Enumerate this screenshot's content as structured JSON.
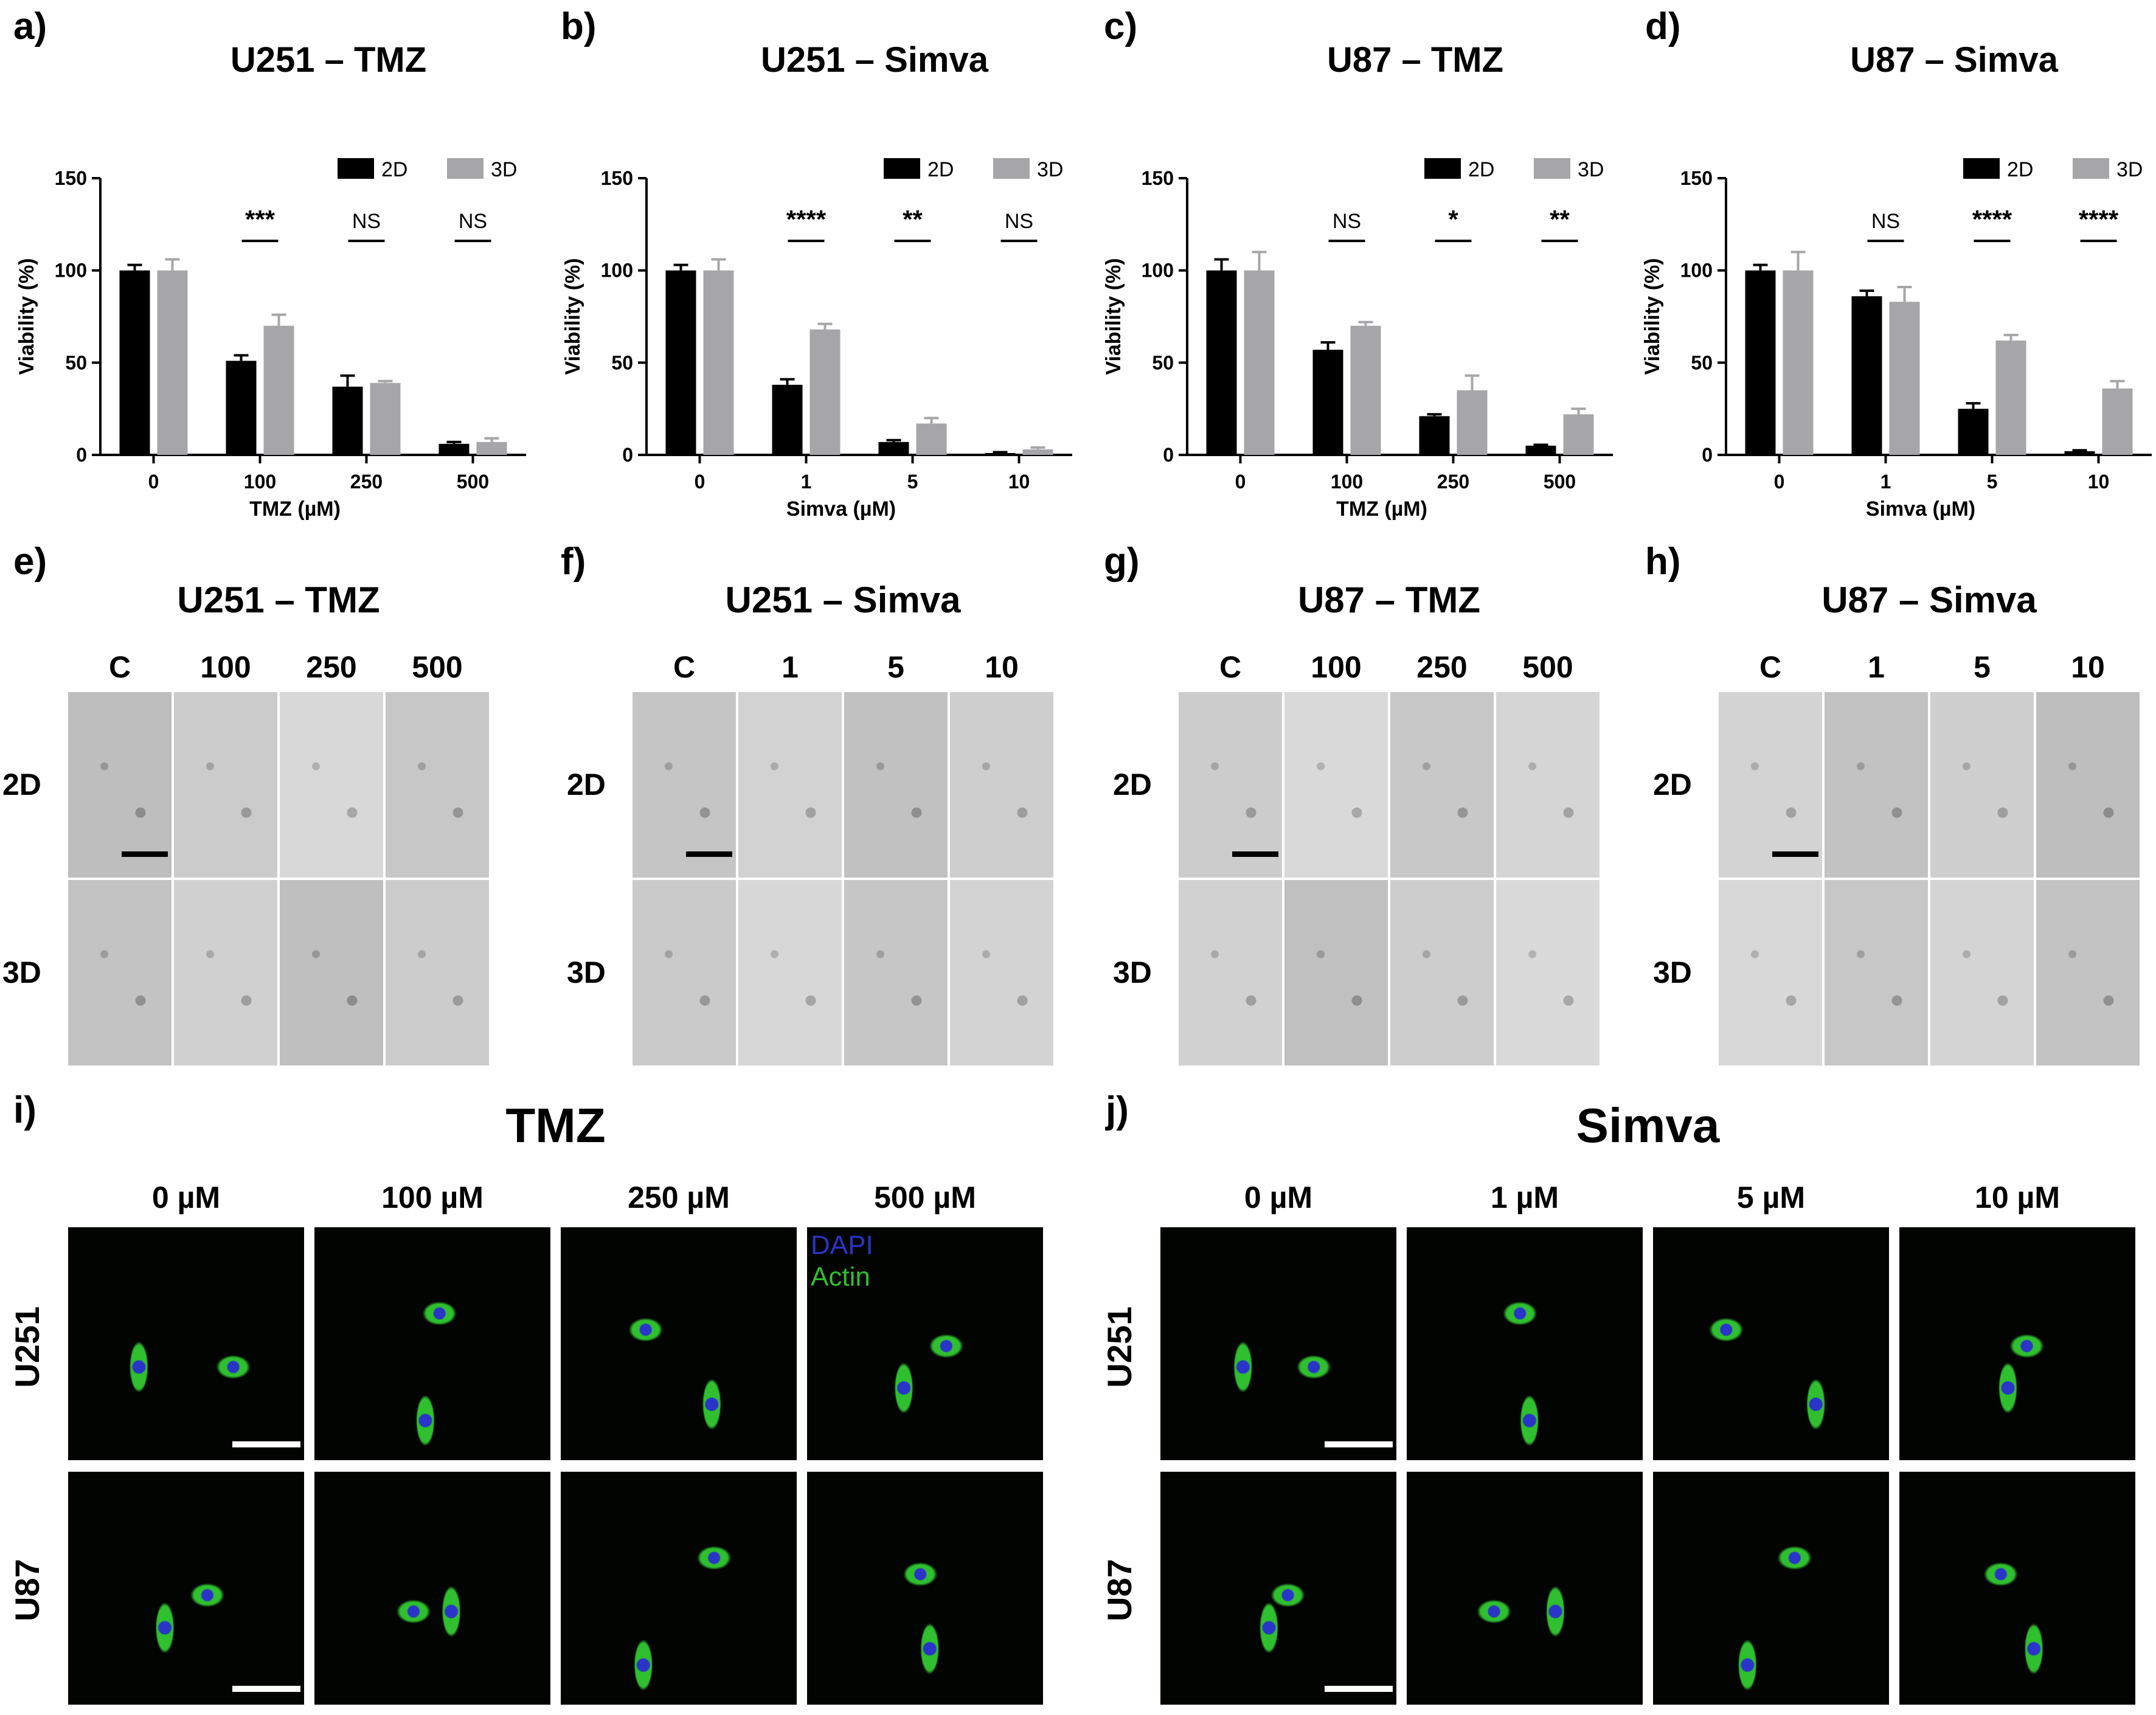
{
  "panel_labels": [
    "a)",
    "b)",
    "c)",
    "d)",
    "e)",
    "f)",
    "g)",
    "h)",
    "i)",
    "j)"
  ],
  "chart_data": [
    {
      "type": "bar",
      "title": "U251 – TMZ",
      "xlabel": "TMZ (µM)",
      "ylabel": "Viability (%)",
      "ylim": [
        0,
        150
      ],
      "yticks": [
        0,
        50,
        100,
        150
      ],
      "categories": [
        "0",
        "100",
        "250",
        "500"
      ],
      "legend_position": "top-right",
      "series": [
        {
          "name": "2D",
          "color": "#000000",
          "values": [
            100,
            51,
            37,
            6
          ],
          "errors": [
            3,
            3,
            6,
            1
          ]
        },
        {
          "name": "3D",
          "color": "#a6a6a8",
          "values": [
            100,
            70,
            39,
            7
          ],
          "errors": [
            6,
            6,
            1,
            2
          ]
        }
      ],
      "significance": [
        "",
        "***",
        "NS",
        "NS"
      ]
    },
    {
      "type": "bar",
      "title": "U251 –  Simva",
      "xlabel": "Simva (µM)",
      "ylabel": "Viability (%)",
      "ylim": [
        0,
        150
      ],
      "yticks": [
        0,
        50,
        100,
        150
      ],
      "categories": [
        "0",
        "1",
        "5",
        "10"
      ],
      "legend_position": "top-right",
      "series": [
        {
          "name": "2D",
          "color": "#000000",
          "values": [
            100,
            38,
            7,
            1
          ],
          "errors": [
            3,
            3,
            1,
            0.5
          ]
        },
        {
          "name": "3D",
          "color": "#a6a6a8",
          "values": [
            100,
            68,
            17,
            3
          ],
          "errors": [
            6,
            3,
            3,
            1
          ]
        }
      ],
      "significance": [
        "",
        "****",
        "**",
        "NS"
      ]
    },
    {
      "type": "bar",
      "title": "U87 – TMZ",
      "xlabel": "TMZ (µM)",
      "ylabel": "Viability (%)",
      "ylim": [
        0,
        150
      ],
      "yticks": [
        0,
        50,
        100,
        150
      ],
      "categories": [
        "0",
        "100",
        "250",
        "500"
      ],
      "legend_position": "top-right",
      "series": [
        {
          "name": "2D",
          "color": "#000000",
          "values": [
            100,
            57,
            21,
            5
          ],
          "errors": [
            6,
            4,
            1,
            0.5
          ]
        },
        {
          "name": "3D",
          "color": "#a6a6a8",
          "values": [
            100,
            70,
            35,
            22
          ],
          "errors": [
            10,
            2,
            8,
            3
          ]
        }
      ],
      "significance": [
        "",
        "NS",
        "*",
        "**"
      ]
    },
    {
      "type": "bar",
      "title": "U87 –  Simva",
      "xlabel": "Simva (µM)",
      "ylabel": "Viability (%)",
      "ylim": [
        0,
        150
      ],
      "yticks": [
        0,
        50,
        100,
        150
      ],
      "categories": [
        "0",
        "1",
        "5",
        "10"
      ],
      "legend_position": "top-right",
      "series": [
        {
          "name": "2D",
          "color": "#000000",
          "values": [
            100,
            86,
            25,
            2
          ],
          "errors": [
            3,
            3,
            3,
            0.5
          ]
        },
        {
          "name": "3D",
          "color": "#a6a6a8",
          "values": [
            100,
            83,
            62,
            36
          ],
          "errors": [
            10,
            8,
            3,
            4
          ]
        }
      ],
      "significance": [
        "",
        "NS",
        "****",
        "****"
      ]
    }
  ],
  "micro_panels": [
    {
      "title": "U251 – TMZ",
      "cols": [
        "C",
        "100",
        "250",
        "500"
      ],
      "rows": [
        "2D",
        "3D"
      ]
    },
    {
      "title": "U251 –  Simva",
      "cols": [
        "C",
        "1",
        "5",
        "10"
      ],
      "rows": [
        "2D",
        "3D"
      ]
    },
    {
      "title": "U87 – TMZ",
      "cols": [
        "C",
        "100",
        "250",
        "500"
      ],
      "rows": [
        "2D",
        "3D"
      ]
    },
    {
      "title": "U87 –  Simva",
      "cols": [
        "C",
        "1",
        "5",
        "10"
      ],
      "rows": [
        "2D",
        "3D"
      ]
    }
  ],
  "fluoro_panels": [
    {
      "title": "TMZ",
      "cols": [
        "0 µM",
        "100 µM",
        "250 µM",
        "500 µM"
      ],
      "rows": [
        "U251",
        "U87"
      ],
      "legend": [
        "DAPI",
        "Actin"
      ]
    },
    {
      "title": "Simva",
      "cols": [
        "0 µM",
        "1 µM",
        "5 µM",
        "10 µM"
      ],
      "rows": [
        "U251",
        "U87"
      ]
    }
  ],
  "colors": {
    "dapi": "#2a34c8",
    "actin": "#2fbf2f",
    "bar_2d": "#000000",
    "bar_3d": "#a6a6a8"
  }
}
